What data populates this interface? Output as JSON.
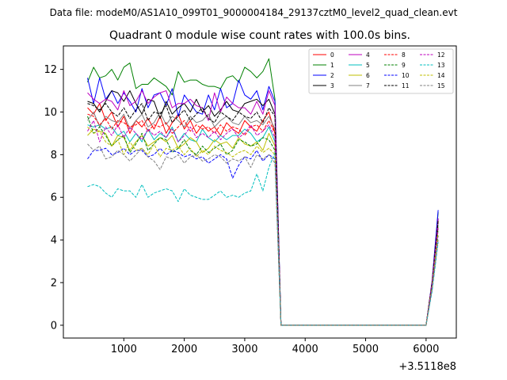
{
  "figure": {
    "suptitle": "Data file: modeM0/AS1A10_099T01_9000004184_29137cztM0_level2_quad_clean.evt",
    "offset_label": "+3.5118e8"
  },
  "chart_data": {
    "type": "line",
    "title": "Quadrant 0 module wise count rates with 100.0s bins.",
    "xlabel": "",
    "ylabel": "",
    "x_offset": 351180000,
    "xlim": [
      0,
      6500
    ],
    "ylim": [
      -0.6,
      13.1
    ],
    "xticks": [
      1000,
      2000,
      3000,
      4000,
      5000,
      6000
    ],
    "xtick_labels": [
      "1000",
      "2000",
      "3000",
      "4000",
      "5000",
      "6000"
    ],
    "yticks": [
      0,
      2,
      4,
      6,
      8,
      10,
      12
    ],
    "ytick_labels": [
      "0",
      "2",
      "4",
      "6",
      "8",
      "10",
      "12"
    ],
    "grid": false,
    "legend_position": "top-right",
    "x": [
      400,
      500,
      600,
      700,
      800,
      900,
      1000,
      1100,
      1200,
      1300,
      1400,
      1500,
      1600,
      1700,
      1800,
      1900,
      2000,
      2100,
      2200,
      2300,
      2400,
      2500,
      2600,
      2700,
      2800,
      2900,
      3000,
      3100,
      3200,
      3300,
      3400,
      3500,
      3600,
      3700,
      3800,
      3900,
      4000,
      4100,
      4200,
      4300,
      4400,
      4500,
      4600,
      4700,
      4800,
      4900,
      5000,
      5100,
      5200,
      5300,
      5400,
      5500,
      5600,
      5700,
      5800,
      5900,
      6000,
      6100,
      6200
    ],
    "series": [
      {
        "name": "0",
        "color": "#ff0000",
        "dash": "solid",
        "values": [
          10.2,
          9.9,
          10.4,
          9.6,
          10.0,
          9.3,
          9.8,
          9.0,
          9.6,
          9.3,
          9.7,
          9.2,
          9.8,
          9.0,
          9.5,
          9.9,
          9.2,
          9.6,
          9.0,
          9.4,
          9.1,
          9.3,
          8.9,
          9.5,
          9.2,
          9.0,
          9.6,
          9.3,
          9.1,
          9.6,
          10.0,
          9.0,
          0,
          0,
          0,
          0,
          0,
          0,
          0,
          0,
          0,
          0,
          0,
          0,
          0,
          0,
          0,
          0,
          0,
          0,
          0,
          0,
          0,
          0,
          0,
          0,
          0,
          2.0,
          5.0
        ]
      },
      {
        "name": "1",
        "color": "#008000",
        "dash": "solid",
        "values": [
          11.4,
          12.1,
          11.6,
          11.7,
          12.0,
          11.5,
          12.1,
          12.3,
          11.1,
          11.3,
          11.3,
          11.6,
          11.4,
          11.2,
          10.8,
          11.9,
          11.4,
          11.5,
          11.5,
          11.3,
          11.2,
          11.2,
          11.1,
          11.6,
          11.7,
          11.4,
          12.1,
          11.9,
          11.6,
          11.9,
          12.5,
          10.6,
          0,
          0,
          0,
          0,
          0,
          0,
          0,
          0,
          0,
          0,
          0,
          0,
          0,
          0,
          0,
          0,
          0,
          0,
          0,
          0,
          0,
          0,
          0,
          0,
          0,
          2.0,
          5.3
        ]
      },
      {
        "name": "2",
        "color": "#0000ff",
        "dash": "solid",
        "values": [
          11.6,
          10.4,
          11.6,
          10.6,
          11.0,
          10.4,
          10.9,
          10.5,
          10.0,
          11.1,
          10.2,
          10.8,
          10.9,
          10.3,
          11.1,
          9.8,
          10.8,
          10.4,
          10.0,
          9.9,
          10.8,
          10.1,
          11.1,
          10.2,
          10.4,
          11.5,
          10.8,
          10.6,
          11.0,
          10.1,
          11.2,
          10.5,
          0,
          0,
          0,
          0,
          0,
          0,
          0,
          0,
          0,
          0,
          0,
          0,
          0,
          0,
          0,
          0,
          0,
          0,
          0,
          0,
          0,
          0,
          0,
          0,
          0,
          2.1,
          5.4
        ]
      },
      {
        "name": "3",
        "color": "#000000",
        "dash": "solid",
        "values": [
          10.5,
          10.4,
          10.0,
          10.5,
          11.0,
          10.9,
          10.5,
          11.0,
          10.4,
          9.9,
          10.6,
          10.5,
          9.7,
          10.5,
          9.9,
          10.2,
          10.4,
          10.0,
          10.6,
          10.0,
          10.3,
          9.8,
          10.1,
          10.5,
          10.1,
          10.0,
          10.4,
          10.5,
          10.6,
          10.3,
          10.6,
          9.9,
          0,
          0,
          0,
          0,
          0,
          0,
          0,
          0,
          0,
          0,
          0,
          0,
          0,
          0,
          0,
          0,
          0,
          0,
          0,
          0,
          0,
          0,
          0,
          0,
          0,
          2.0,
          5.0
        ]
      },
      {
        "name": "4",
        "color": "#bf00bf",
        "dash": "solid",
        "values": [
          10.9,
          10.6,
          10.4,
          10.6,
          10.5,
          10.1,
          11.0,
          10.3,
          10.5,
          11.0,
          10.4,
          10.7,
          10.9,
          11.0,
          10.2,
          10.4,
          10.4,
          10.6,
          10.3,
          10.2,
          9.6,
          10.9,
          10.0,
          10.7,
          10.4,
          10.2,
          10.2,
          9.9,
          10.5,
          9.9,
          11.0,
          10.3,
          0,
          0,
          0,
          0,
          0,
          0,
          0,
          0,
          0,
          0,
          0,
          0,
          0,
          0,
          0,
          0,
          0,
          0,
          0,
          0,
          0,
          0,
          0,
          0,
          0,
          2.0,
          5.0
        ]
      },
      {
        "name": "5",
        "color": "#00bfbf",
        "dash": "solid",
        "values": [
          9.4,
          9.3,
          9.4,
          9.2,
          9.3,
          8.9,
          9.1,
          8.6,
          9.0,
          8.6,
          9.2,
          8.7,
          9.0,
          8.8,
          9.3,
          8.6,
          9.0,
          8.7,
          8.6,
          9.2,
          8.8,
          8.6,
          8.9,
          8.7,
          8.9,
          8.9,
          9.2,
          9.0,
          8.6,
          8.8,
          9.3,
          8.6,
          0,
          0,
          0,
          0,
          0,
          0,
          0,
          0,
          0,
          0,
          0,
          0,
          0,
          0,
          0,
          0,
          0,
          0,
          0,
          0,
          0,
          0,
          0,
          0,
          0,
          1.9,
          4.7
        ]
      },
      {
        "name": "6",
        "color": "#bfbf00",
        "dash": "solid",
        "values": [
          8.9,
          9.2,
          9.1,
          9.0,
          8.4,
          8.9,
          8.8,
          8.2,
          8.6,
          8.9,
          8.4,
          8.6,
          8.8,
          8.6,
          8.9,
          8.3,
          8.5,
          8.8,
          8.6,
          8.1,
          8.3,
          8.7,
          8.5,
          8.6,
          8.3,
          8.8,
          8.5,
          8.4,
          8.6,
          8.2,
          9.0,
          8.4,
          0,
          0,
          0,
          0,
          0,
          0,
          0,
          0,
          0,
          0,
          0,
          0,
          0,
          0,
          0,
          0,
          0,
          0,
          0,
          0,
          0,
          0,
          0,
          0,
          0,
          1.9,
          4.6
        ]
      },
      {
        "name": "7",
        "color": "#808080",
        "dash": "solid",
        "values": [
          9.6,
          10.0,
          9.3,
          9.8,
          9.6,
          9.5,
          9.9,
          9.2,
          9.6,
          9.9,
          9.3,
          9.5,
          10.0,
          9.4,
          9.8,
          9.6,
          9.3,
          9.8,
          9.5,
          9.6,
          9.9,
          9.3,
          9.6,
          9.8,
          9.5,
          9.4,
          9.8,
          9.5,
          9.6,
          9.4,
          9.8,
          9.2,
          0,
          0,
          0,
          0,
          0,
          0,
          0,
          0,
          0,
          0,
          0,
          0,
          0,
          0,
          0,
          0,
          0,
          0,
          0,
          0,
          0,
          0,
          0,
          0,
          0,
          1.9,
          4.8
        ]
      },
      {
        "name": "8",
        "color": "#ff0000",
        "dash": "dashed",
        "values": [
          9.9,
          9.8,
          9.4,
          9.7,
          9.2,
          9.6,
          9.5,
          9.3,
          9.4,
          9.6,
          9.1,
          9.4,
          9.3,
          9.5,
          9.0,
          9.3,
          9.6,
          9.1,
          9.4,
          9.2,
          9.3,
          9.0,
          9.4,
          9.1,
          9.3,
          9.2,
          8.9,
          9.3,
          9.4,
          9.1,
          9.6,
          9.0,
          0,
          0,
          0,
          0,
          0,
          0,
          0,
          0,
          0,
          0,
          0,
          0,
          0,
          0,
          0,
          0,
          0,
          0,
          0,
          0,
          0,
          0,
          0,
          0,
          0,
          2.0,
          4.9
        ]
      },
      {
        "name": "9",
        "color": "#008000",
        "dash": "dashed",
        "values": [
          9.8,
          9.0,
          9.3,
          8.9,
          8.4,
          8.7,
          8.9,
          8.1,
          8.5,
          9.0,
          8.2,
          8.5,
          8.8,
          8.7,
          8.1,
          8.3,
          8.7,
          8.2,
          8.0,
          8.4,
          8.1,
          8.3,
          8.5,
          8.0,
          8.2,
          8.7,
          8.6,
          8.4,
          8.5,
          8.8,
          8.7,
          8.2,
          0,
          0,
          0,
          0,
          0,
          0,
          0,
          0,
          0,
          0,
          0,
          0,
          0,
          0,
          0,
          0,
          0,
          0,
          0,
          0,
          0,
          0,
          0,
          0,
          0,
          1.8,
          4.5
        ]
      },
      {
        "name": "10",
        "color": "#0000ff",
        "dash": "dashed",
        "values": [
          7.8,
          8.2,
          8.2,
          8.3,
          8.0,
          8.1,
          8.3,
          8.0,
          8.2,
          8.2,
          7.9,
          8.0,
          8.3,
          8.0,
          8.2,
          8.1,
          7.9,
          8.0,
          7.8,
          7.9,
          7.6,
          7.8,
          8.0,
          7.8,
          6.9,
          7.5,
          7.9,
          7.8,
          8.2,
          7.7,
          8.0,
          7.8,
          0,
          0,
          0,
          0,
          0,
          0,
          0,
          0,
          0,
          0,
          0,
          0,
          0,
          0,
          0,
          0,
          0,
          0,
          0,
          0,
          0,
          0,
          0,
          0,
          0,
          1.7,
          4.2
        ]
      },
      {
        "name": "11",
        "color": "#000000",
        "dash": "dashed",
        "values": [
          10.4,
          10.3,
          10.1,
          10.4,
          10.0,
          9.8,
          10.2,
          9.7,
          10.1,
          10.4,
          9.6,
          10.0,
          9.9,
          10.3,
          9.5,
          9.8,
          10.1,
          9.6,
          9.9,
          10.2,
          9.7,
          9.5,
          10.0,
          9.8,
          9.6,
          10.0,
          9.8,
          9.7,
          10.0,
          9.5,
          10.2,
          9.8,
          0,
          0,
          0,
          0,
          0,
          0,
          0,
          0,
          0,
          0,
          0,
          0,
          0,
          0,
          0,
          0,
          0,
          0,
          0,
          0,
          0,
          0,
          0,
          0,
          0,
          2.0,
          4.9
        ]
      },
      {
        "name": "12",
        "color": "#bf00bf",
        "dash": "dashed",
        "values": [
          9.1,
          9.6,
          8.6,
          9.3,
          8.9,
          9.4,
          8.8,
          9.3,
          9.0,
          8.7,
          9.2,
          8.9,
          9.1,
          8.8,
          9.2,
          8.6,
          8.9,
          9.3,
          8.8,
          9.0,
          8.8,
          9.1,
          8.7,
          9.0,
          9.2,
          8.8,
          9.0,
          9.4,
          8.9,
          9.1,
          9.4,
          8.8,
          0,
          0,
          0,
          0,
          0,
          0,
          0,
          0,
          0,
          0,
          0,
          0,
          0,
          0,
          0,
          0,
          0,
          0,
          0,
          0,
          0,
          0,
          0,
          0,
          0,
          1.9,
          4.6
        ]
      },
      {
        "name": "13",
        "color": "#00bfbf",
        "dash": "dashed",
        "values": [
          6.5,
          6.6,
          6.5,
          6.2,
          6.0,
          6.4,
          6.3,
          6.3,
          6.0,
          6.6,
          6.0,
          6.2,
          6.3,
          6.4,
          6.3,
          5.8,
          6.4,
          6.1,
          6.0,
          5.9,
          5.9,
          6.1,
          6.3,
          6.0,
          6.1,
          6.0,
          6.2,
          6.3,
          7.1,
          6.3,
          7.4,
          8.1,
          0,
          0,
          0,
          0,
          0,
          0,
          0,
          0,
          0,
          0,
          0,
          0,
          0,
          0,
          0,
          0,
          0,
          0,
          0,
          0,
          0,
          0,
          0,
          0,
          0,
          1.6,
          3.9
        ]
      },
      {
        "name": "14",
        "color": "#bfbf00",
        "dash": "dashed",
        "values": [
          9.3,
          9.0,
          9.1,
          8.6,
          8.4,
          8.7,
          8.0,
          8.6,
          8.2,
          8.3,
          8.0,
          8.5,
          7.9,
          8.3,
          8.2,
          8.4,
          8.0,
          8.3,
          7.9,
          8.2,
          8.0,
          8.4,
          8.2,
          8.1,
          7.9,
          8.1,
          8.2,
          8.0,
          8.4,
          8.1,
          8.3,
          8.0,
          0,
          0,
          0,
          0,
          0,
          0,
          0,
          0,
          0,
          0,
          0,
          0,
          0,
          0,
          0,
          0,
          0,
          0,
          0,
          0,
          0,
          0,
          0,
          0,
          0,
          1.8,
          4.3
        ]
      },
      {
        "name": "15",
        "color": "#808080",
        "dash": "dashed",
        "values": [
          8.5,
          8.2,
          8.4,
          7.8,
          7.9,
          8.2,
          8.0,
          7.7,
          8.0,
          8.3,
          7.9,
          7.7,
          7.3,
          7.9,
          7.8,
          8.0,
          7.6,
          7.9,
          8.0,
          7.7,
          7.8,
          8.0,
          7.9,
          7.6,
          7.8,
          7.7,
          7.9,
          7.4,
          8.0,
          7.8,
          8.0,
          7.6,
          0,
          0,
          0,
          0,
          0,
          0,
          0,
          0,
          0,
          0,
          0,
          0,
          0,
          0,
          0,
          0,
          0,
          0,
          0,
          0,
          0,
          0,
          0,
          0,
          0,
          1.7,
          4.0
        ]
      }
    ]
  }
}
